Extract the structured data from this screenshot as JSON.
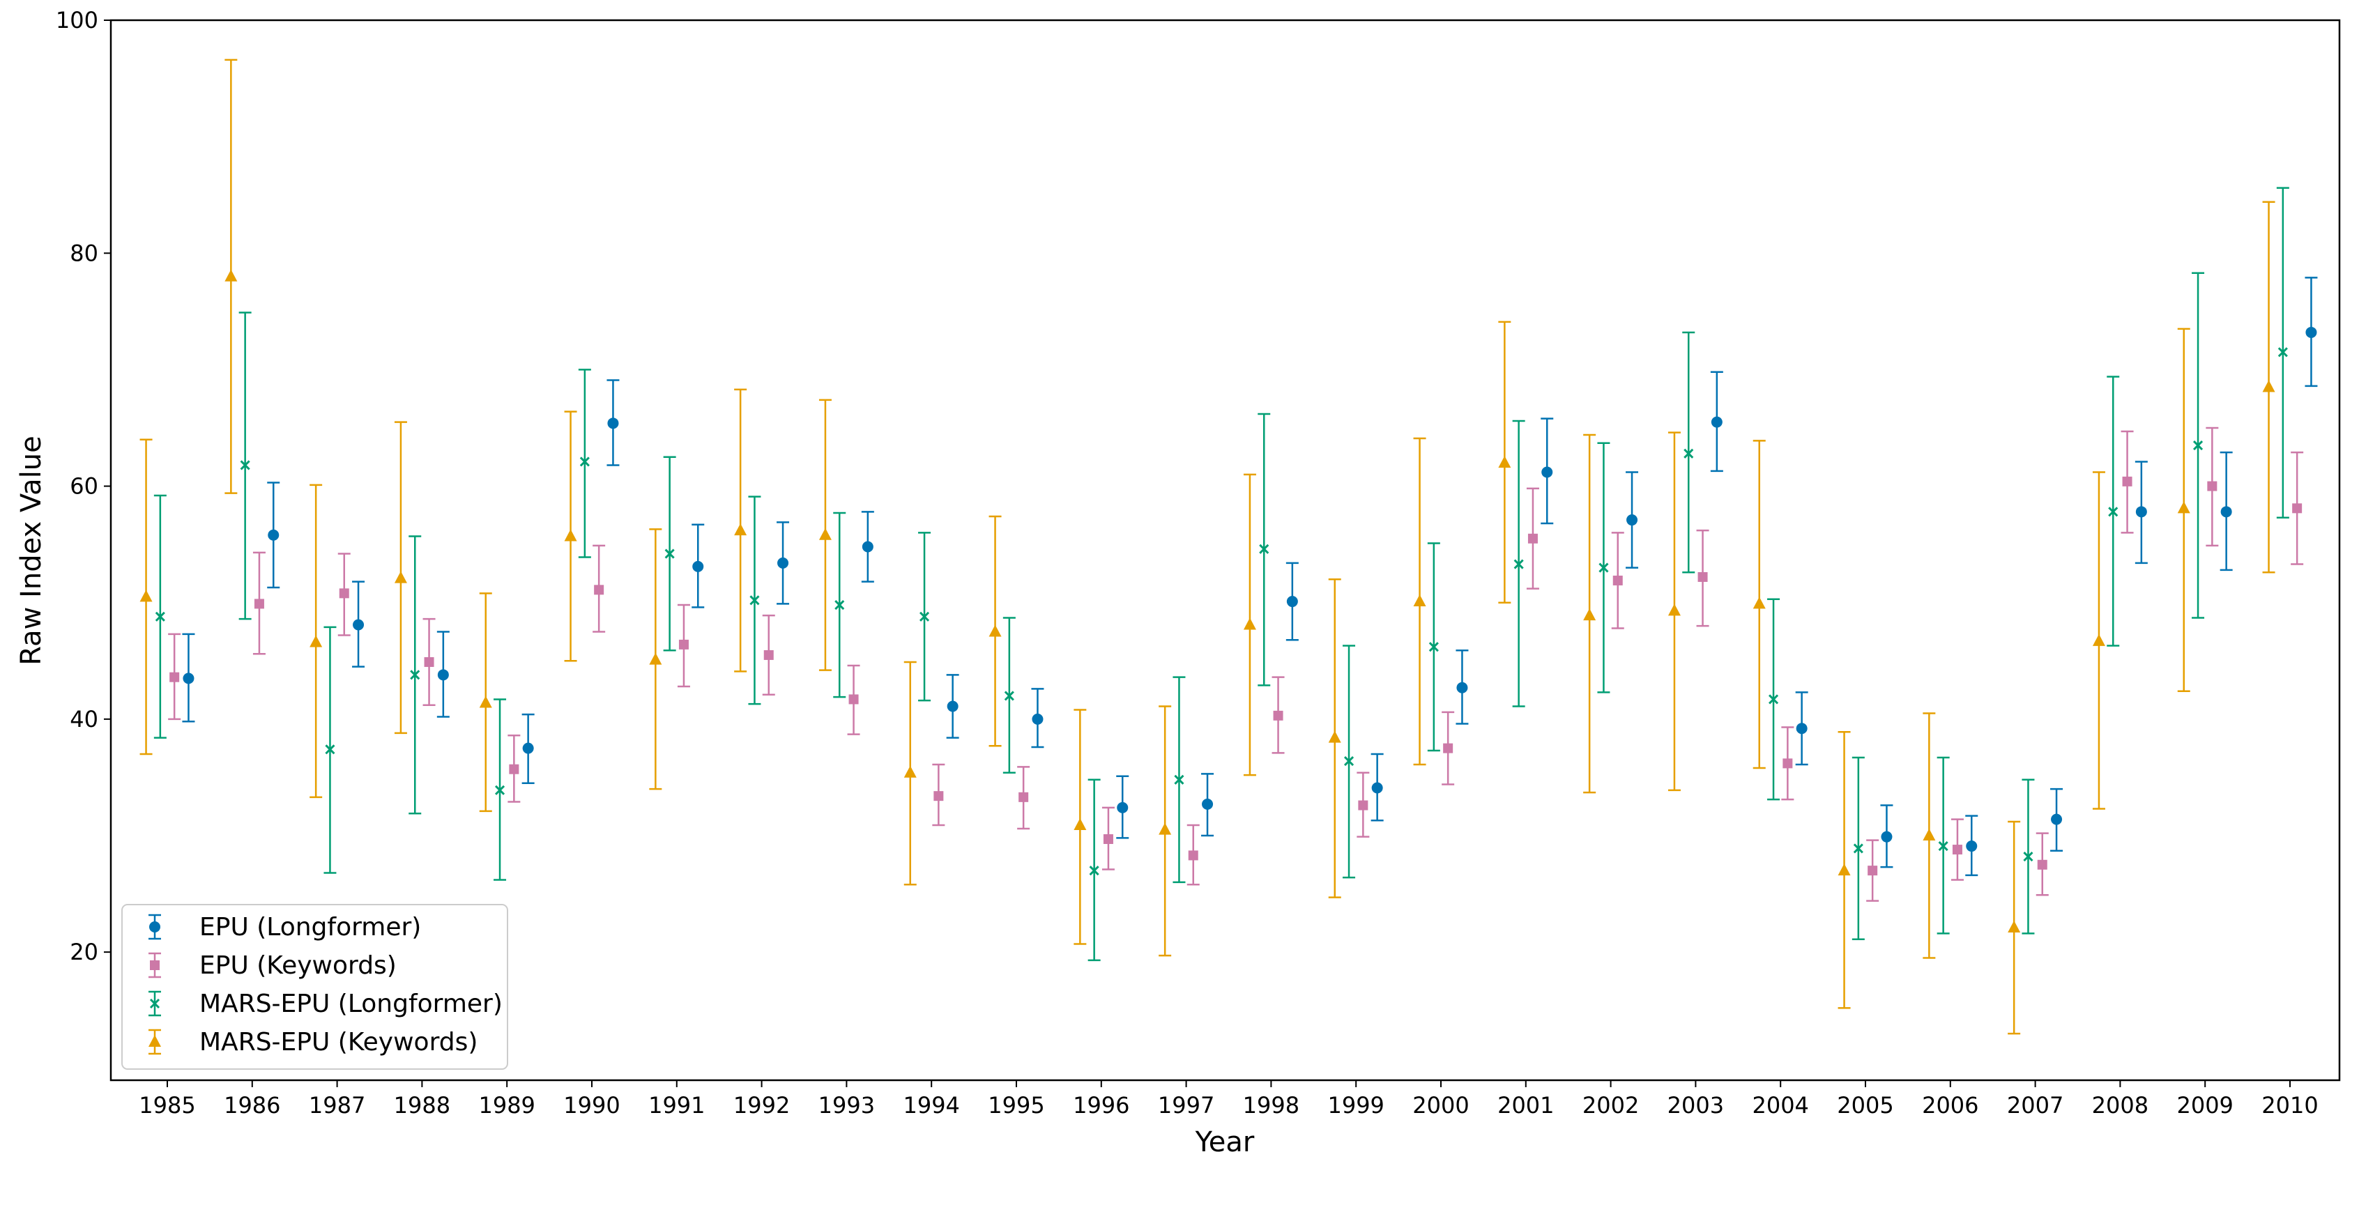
{
  "chart_data": {
    "type": "scatter",
    "title": "",
    "xlabel": "Year",
    "ylabel": "Raw Index Value",
    "ylim": [
      9,
      100
    ],
    "yticks": [
      20,
      40,
      60,
      80,
      100
    ],
    "categories": [
      "1985",
      "1986",
      "1987",
      "1988",
      "1989",
      "1990",
      "1991",
      "1992",
      "1993",
      "1994",
      "1995",
      "1996",
      "1997",
      "1998",
      "1999",
      "2000",
      "2001",
      "2002",
      "2003",
      "2004",
      "2005",
      "2006",
      "2007",
      "2008",
      "2009",
      "2010"
    ],
    "grid": false,
    "legend_position": "lower-left",
    "series": [
      {
        "name": "EPU (Longformer)",
        "color": "#0072b2",
        "marker": "circle",
        "values": [
          43.5,
          55.8,
          48.1,
          43.8,
          37.5,
          65.4,
          53.1,
          53.4,
          54.8,
          41.1,
          40.0,
          32.4,
          32.7,
          50.1,
          34.1,
          42.7,
          61.2,
          57.1,
          65.5,
          39.2,
          29.9,
          29.1,
          31.4,
          57.8,
          57.8,
          73.2
        ],
        "lower": [
          39.8,
          51.3,
          44.5,
          40.2,
          34.5,
          61.8,
          49.6,
          49.9,
          51.8,
          38.4,
          37.6,
          29.8,
          30.0,
          46.8,
          31.3,
          39.6,
          56.8,
          53.0,
          61.3,
          36.1,
          27.3,
          26.6,
          28.7,
          53.4,
          52.8,
          68.6
        ],
        "upper": [
          47.3,
          60.3,
          51.8,
          47.5,
          40.4,
          69.1,
          56.7,
          56.9,
          57.8,
          43.8,
          42.6,
          35.1,
          35.3,
          53.4,
          37.0,
          45.9,
          65.8,
          61.2,
          69.8,
          42.3,
          32.6,
          31.7,
          34.0,
          62.1,
          62.9,
          77.9
        ]
      },
      {
        "name": "EPU (Keywords)",
        "color": "#cc79a7",
        "marker": "square",
        "values": [
          43.6,
          49.9,
          50.8,
          44.9,
          35.7,
          51.1,
          46.4,
          45.5,
          41.7,
          33.4,
          33.3,
          29.7,
          28.3,
          40.3,
          32.6,
          37.5,
          55.5,
          51.9,
          52.2,
          36.2,
          27.0,
          28.8,
          27.5,
          60.4,
          60.0,
          58.1
        ],
        "lower": [
          40.0,
          45.6,
          47.2,
          41.2,
          32.9,
          47.5,
          42.8,
          42.1,
          38.7,
          30.9,
          30.6,
          27.1,
          25.8,
          37.1,
          29.9,
          34.4,
          51.2,
          47.8,
          48.0,
          33.1,
          24.4,
          26.2,
          24.9,
          56.0,
          54.9,
          53.3
        ],
        "upper": [
          47.3,
          54.3,
          54.2,
          48.6,
          38.6,
          54.9,
          49.8,
          48.9,
          44.6,
          36.1,
          35.9,
          32.4,
          30.9,
          43.6,
          35.4,
          40.6,
          59.8,
          56.0,
          56.2,
          39.3,
          29.6,
          31.4,
          30.2,
          64.7,
          65.0,
          62.9
        ]
      },
      {
        "name": "MARS-EPU (Longformer)",
        "color": "#009e73",
        "marker": "x",
        "values": [
          48.8,
          61.8,
          37.4,
          43.8,
          33.9,
          62.1,
          54.2,
          50.2,
          49.8,
          48.8,
          42.0,
          27.0,
          34.8,
          54.6,
          36.4,
          46.2,
          53.3,
          53.0,
          62.8,
          41.7,
          28.9,
          29.1,
          28.2,
          57.8,
          63.5,
          71.5
        ],
        "lower": [
          38.4,
          48.6,
          26.8,
          31.9,
          26.2,
          53.9,
          45.9,
          41.3,
          41.9,
          41.6,
          35.4,
          19.3,
          26.0,
          42.9,
          26.4,
          37.3,
          41.1,
          42.3,
          52.6,
          33.1,
          21.1,
          21.6,
          21.6,
          46.3,
          48.7,
          57.3
        ],
        "upper": [
          59.2,
          74.9,
          47.9,
          55.7,
          41.7,
          70.0,
          62.5,
          59.1,
          57.7,
          56.0,
          48.7,
          34.8,
          43.6,
          66.2,
          46.3,
          55.1,
          65.6,
          63.7,
          73.2,
          50.3,
          36.7,
          36.7,
          34.8,
          69.4,
          78.3,
          85.6
        ]
      },
      {
        "name": "MARS-EPU (Keywords)",
        "color": "#e69f00",
        "marker": "triangle",
        "values": [
          50.5,
          78.0,
          46.6,
          52.1,
          41.4,
          55.7,
          45.1,
          56.2,
          55.8,
          35.4,
          47.5,
          30.9,
          30.5,
          48.1,
          38.4,
          50.1,
          62.0,
          48.9,
          49.3,
          49.9,
          27.0,
          30.0,
          22.1,
          46.7,
          58.1,
          68.5
        ],
        "lower": [
          37.0,
          59.4,
          33.3,
          38.8,
          32.1,
          45.0,
          34.0,
          44.1,
          44.2,
          25.8,
          37.7,
          20.7,
          19.7,
          35.2,
          24.7,
          36.1,
          50.0,
          33.7,
          33.9,
          35.8,
          15.2,
          19.5,
          13.0,
          32.3,
          42.4,
          52.6
        ],
        "upper": [
          64.0,
          96.6,
          60.1,
          65.5,
          50.8,
          66.4,
          56.3,
          68.3,
          67.4,
          44.9,
          57.4,
          40.8,
          41.1,
          61.0,
          52.0,
          64.1,
          74.1,
          64.4,
          64.6,
          63.9,
          38.9,
          40.5,
          31.2,
          61.2,
          73.5,
          84.4
        ]
      }
    ]
  }
}
